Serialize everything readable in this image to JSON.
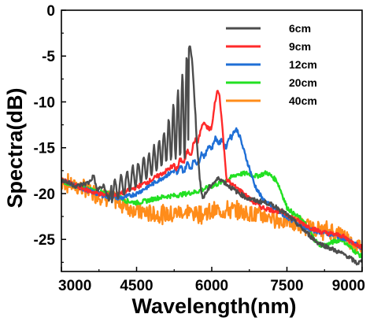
{
  "chart_data": {
    "type": "line",
    "xlabel": "Wavelength(nm)",
    "ylabel": "Spectra(dB)",
    "xlim": [
      3000,
      9000
    ],
    "ylim": [
      -28.5,
      0
    ],
    "xticks": [
      3000,
      4500,
      6000,
      7500,
      9000
    ],
    "yticks": [
      0,
      -5,
      -10,
      -15,
      -20,
      -25
    ],
    "grid": false,
    "legend_position": "top-right",
    "series": [
      {
        "name": "6cm",
        "color": "#4d4d4d",
        "points": [
          [
            3000,
            -18.5
          ],
          [
            3300,
            -19.2
          ],
          [
            3550,
            -18.8
          ],
          [
            3650,
            -18.0
          ],
          [
            3700,
            -19.6
          ],
          [
            3850,
            -19.2
          ],
          [
            3950,
            -20.8
          ],
          [
            4000,
            -19.0
          ],
          [
            4150,
            -18.2
          ],
          [
            4300,
            -17.6
          ],
          [
            4450,
            -17.0
          ],
          [
            4600,
            -16.3
          ],
          [
            4750,
            -15.5
          ],
          [
            4900,
            -14.5
          ],
          [
            5050,
            -13.2
          ],
          [
            5150,
            -11.8
          ],
          [
            5250,
            -10.0
          ],
          [
            5350,
            -8.2
          ],
          [
            5450,
            -6.0
          ],
          [
            5520,
            -4.2
          ],
          [
            5560,
            -3.8
          ],
          [
            5600,
            -5.0
          ],
          [
            5650,
            -9.0
          ],
          [
            5700,
            -14.0
          ],
          [
            5760,
            -18.5
          ],
          [
            5820,
            -20.5
          ],
          [
            5900,
            -19.8
          ],
          [
            6000,
            -19.0
          ],
          [
            6150,
            -18.3
          ],
          [
            6300,
            -19.0
          ],
          [
            6500,
            -19.8
          ],
          [
            6700,
            -20.5
          ],
          [
            6900,
            -20.8
          ],
          [
            7100,
            -21.0
          ],
          [
            7300,
            -21.5
          ],
          [
            7500,
            -22.3
          ],
          [
            7700,
            -23.3
          ],
          [
            7900,
            -24.3
          ],
          [
            8100,
            -25.3
          ],
          [
            8300,
            -25.8
          ],
          [
            8500,
            -26.3
          ],
          [
            8700,
            -26.8
          ],
          [
            8900,
            -27.6
          ],
          [
            9000,
            -27.4
          ]
        ],
        "fringe_envelope": [
          [
            4000,
            -21.0
          ],
          [
            4400,
            -19.6
          ],
          [
            4800,
            -18.0
          ],
          [
            5100,
            -16.5
          ],
          [
            5400,
            -16.0
          ],
          [
            5560,
            -16.5
          ]
        ]
      },
      {
        "name": "9cm",
        "color": "#ff2a2a",
        "points": [
          [
            3000,
            -18.5
          ],
          [
            3300,
            -19.2
          ],
          [
            3600,
            -19.8
          ],
          [
            3900,
            -20.2
          ],
          [
            4200,
            -20.0
          ],
          [
            4500,
            -19.3
          ],
          [
            4800,
            -18.5
          ],
          [
            5100,
            -17.5
          ],
          [
            5400,
            -16.2
          ],
          [
            5600,
            -14.8
          ],
          [
            5700,
            -13.8
          ],
          [
            5800,
            -12.8
          ],
          [
            5850,
            -11.5
          ],
          [
            5900,
            -12.5
          ],
          [
            5950,
            -13.0
          ],
          [
            6000,
            -12.0
          ],
          [
            6050,
            -10.5
          ],
          [
            6100,
            -9.0
          ],
          [
            6130,
            -8.8
          ],
          [
            6160,
            -9.5
          ],
          [
            6200,
            -12.0
          ],
          [
            6250,
            -15.5
          ],
          [
            6300,
            -18.5
          ],
          [
            6400,
            -19.0
          ],
          [
            6600,
            -19.8
          ],
          [
            6800,
            -20.8
          ],
          [
            7000,
            -21.5
          ],
          [
            7200,
            -21.8
          ],
          [
            7400,
            -22.0
          ],
          [
            7600,
            -22.6
          ],
          [
            7800,
            -23.2
          ],
          [
            8000,
            -23.8
          ],
          [
            8200,
            -24.2
          ],
          [
            8400,
            -24.4
          ],
          [
            8600,
            -24.6
          ],
          [
            8800,
            -25.3
          ],
          [
            9000,
            -25.9
          ]
        ]
      },
      {
        "name": "12cm",
        "color": "#1f6fd6",
        "points": [
          [
            3000,
            -18.5
          ],
          [
            3300,
            -19.2
          ],
          [
            3600,
            -19.8
          ],
          [
            3900,
            -20.3
          ],
          [
            4200,
            -20.5
          ],
          [
            4500,
            -20.0
          ],
          [
            4800,
            -19.0
          ],
          [
            5100,
            -18.0
          ],
          [
            5400,
            -17.0
          ],
          [
            5700,
            -16.2
          ],
          [
            5900,
            -15.0
          ],
          [
            6050,
            -14.0
          ],
          [
            6150,
            -13.8
          ],
          [
            6250,
            -14.4
          ],
          [
            6350,
            -13.8
          ],
          [
            6450,
            -13.2
          ],
          [
            6500,
            -13.0
          ],
          [
            6560,
            -13.8
          ],
          [
            6650,
            -15.5
          ],
          [
            6750,
            -17.2
          ],
          [
            6850,
            -19.0
          ],
          [
            7000,
            -20.5
          ],
          [
            7200,
            -21.5
          ],
          [
            7400,
            -22.2
          ],
          [
            7600,
            -22.9
          ],
          [
            7800,
            -23.5
          ],
          [
            8000,
            -24.0
          ],
          [
            8200,
            -24.2
          ],
          [
            8400,
            -24.5
          ],
          [
            8600,
            -24.8
          ],
          [
            8800,
            -25.3
          ],
          [
            9000,
            -26.0
          ]
        ]
      },
      {
        "name": "20cm",
        "color": "#22e022",
        "points": [
          [
            3000,
            -18.6
          ],
          [
            3300,
            -19.2
          ],
          [
            3600,
            -19.6
          ],
          [
            3900,
            -20.0
          ],
          [
            4100,
            -20.2
          ],
          [
            4300,
            -20.8
          ],
          [
            4500,
            -21.0
          ],
          [
            4700,
            -20.8
          ],
          [
            4900,
            -20.5
          ],
          [
            5100,
            -20.3
          ],
          [
            5300,
            -20.2
          ],
          [
            5500,
            -20.0
          ],
          [
            5700,
            -19.8
          ],
          [
            5900,
            -19.4
          ],
          [
            6100,
            -19.0
          ],
          [
            6300,
            -18.5
          ],
          [
            6500,
            -17.9
          ],
          [
            6700,
            -17.8
          ],
          [
            6900,
            -18.1
          ],
          [
            7100,
            -17.7
          ],
          [
            7300,
            -18.6
          ],
          [
            7400,
            -20.0
          ],
          [
            7500,
            -21.5
          ],
          [
            7650,
            -22.3
          ],
          [
            7800,
            -22.8
          ],
          [
            7950,
            -24.0
          ],
          [
            8050,
            -25.0
          ],
          [
            8150,
            -25.6
          ],
          [
            8300,
            -25.6
          ],
          [
            8450,
            -25.2
          ],
          [
            8600,
            -25.0
          ],
          [
            8750,
            -25.8
          ],
          [
            8900,
            -26.5
          ],
          [
            9000,
            -26.9
          ]
        ]
      },
      {
        "name": "40cm",
        "color": "#ff8c1a",
        "points": [
          [
            3000,
            -18.8
          ],
          [
            3200,
            -19.0
          ],
          [
            3400,
            -19.4
          ],
          [
            3600,
            -19.8
          ],
          [
            3800,
            -20.2
          ],
          [
            4000,
            -20.6
          ],
          [
            4200,
            -21.1
          ],
          [
            4400,
            -21.6
          ],
          [
            4600,
            -22.0
          ],
          [
            4800,
            -22.2
          ],
          [
            5000,
            -22.3
          ],
          [
            5200,
            -22.2
          ],
          [
            5400,
            -22.0
          ],
          [
            5600,
            -22.1
          ],
          [
            5800,
            -22.2
          ],
          [
            6000,
            -22.0
          ],
          [
            6200,
            -21.8
          ],
          [
            6400,
            -21.8
          ],
          [
            6600,
            -22.0
          ],
          [
            6800,
            -22.2
          ],
          [
            7000,
            -22.4
          ],
          [
            7200,
            -22.6
          ],
          [
            7400,
            -22.9
          ],
          [
            7600,
            -23.2
          ],
          [
            7800,
            -23.5
          ],
          [
            8000,
            -23.8
          ],
          [
            8200,
            -24.0
          ],
          [
            8400,
            -24.1
          ],
          [
            8600,
            -24.5
          ],
          [
            8800,
            -25.3
          ],
          [
            9000,
            -26.0
          ]
        ],
        "noise_amplitude_db": 0.9
      }
    ]
  }
}
